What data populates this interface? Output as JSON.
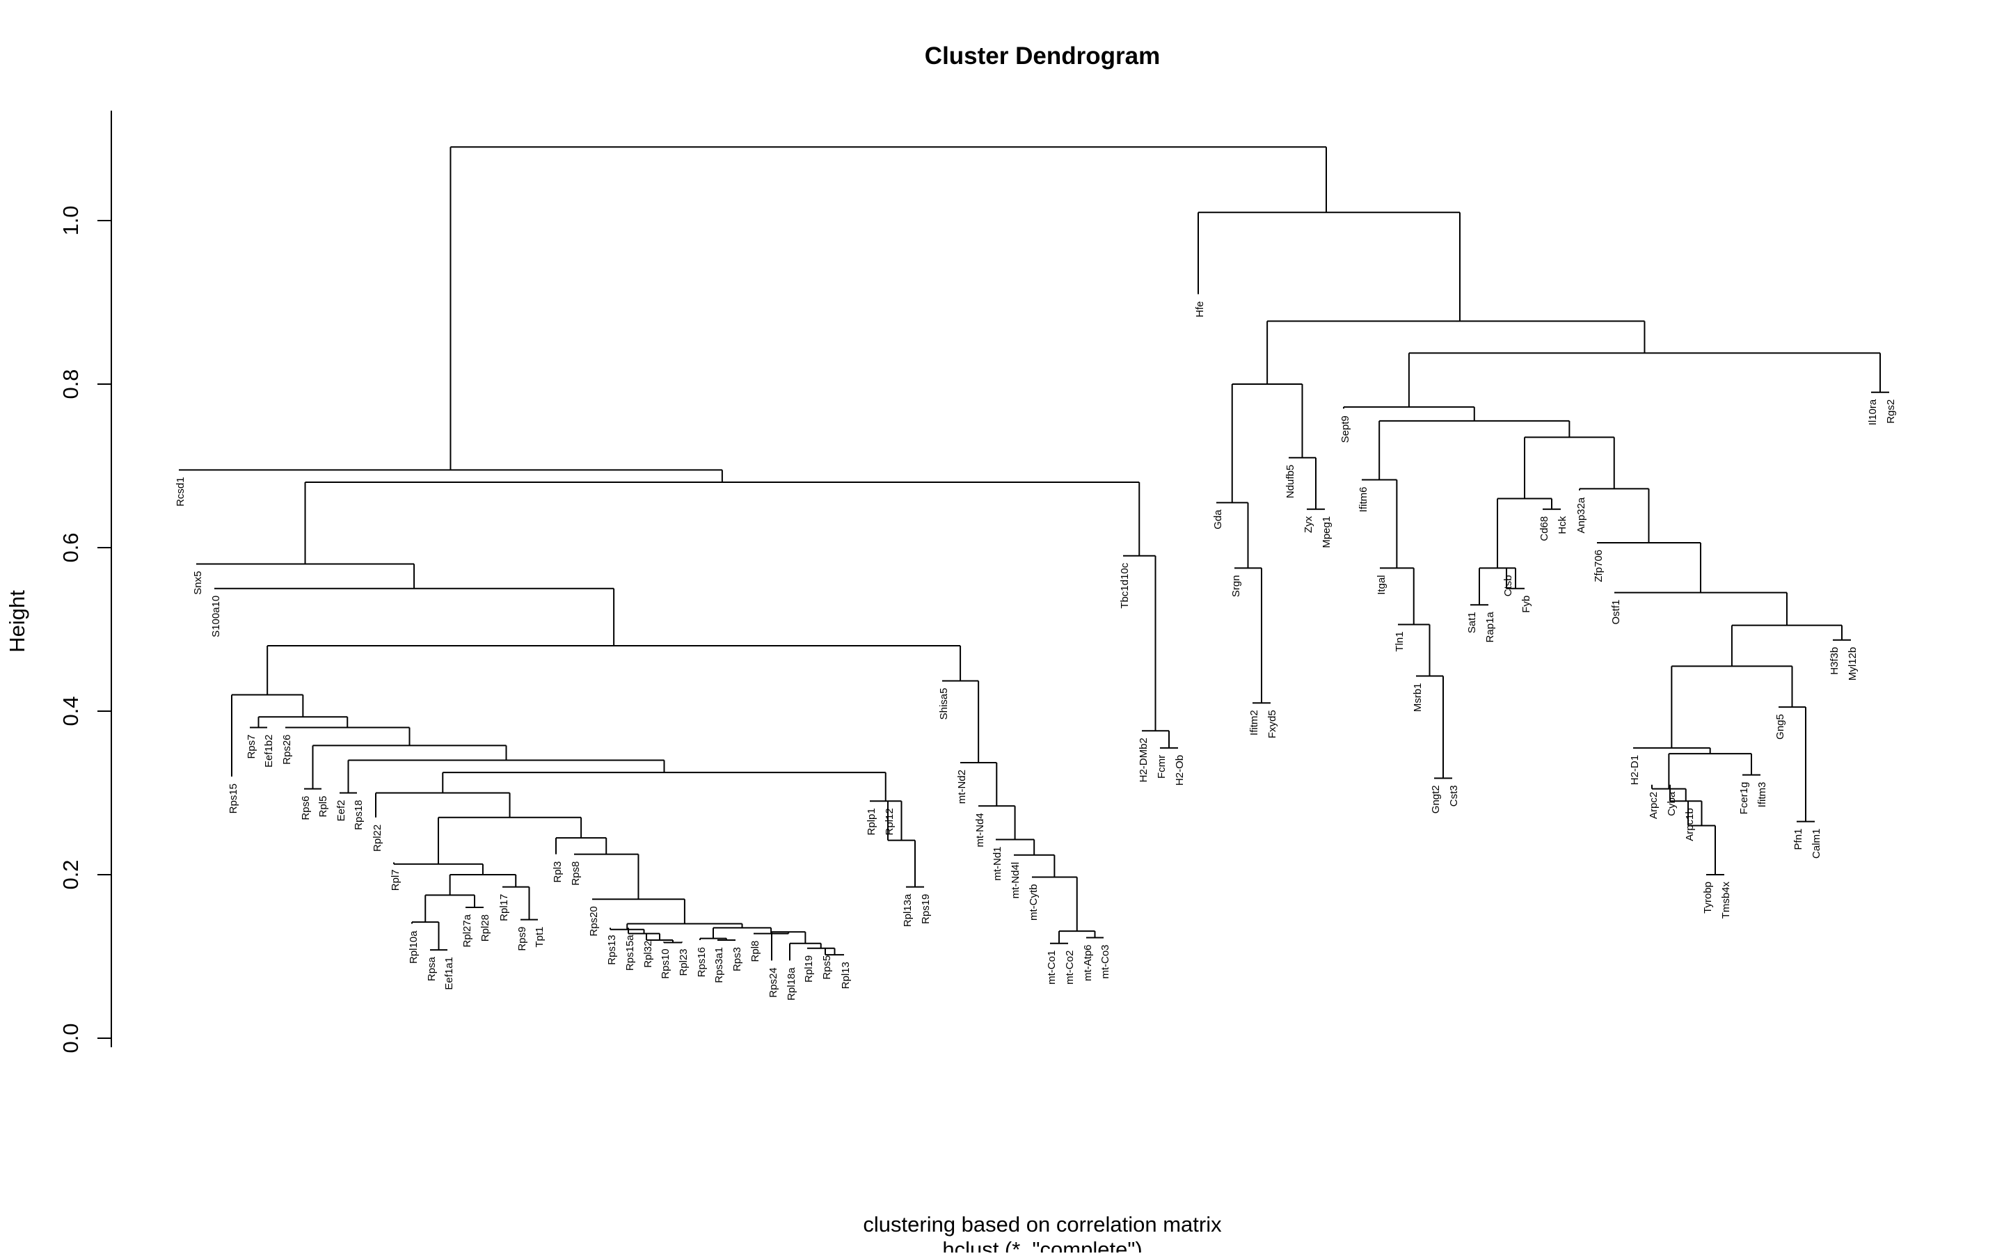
{
  "title": "Cluster Dendrogram",
  "ylabel": "Height",
  "xlabel": "clustering based on correlation matrix",
  "sub": "hclust (*, \"complete\")",
  "ticks": [
    "0.0",
    "0.2",
    "0.4",
    "0.6",
    "0.8",
    "1.0"
  ],
  "colors": {
    "line": "#000000",
    "text": "#000000",
    "background": "#ffffff"
  },
  "chart_data": {
    "type": "dendrogram",
    "ylim": [
      0,
      1.1
    ],
    "ytick_values": [
      0,
      0.2,
      0.4,
      0.6,
      0.8,
      1.0
    ],
    "leaves": [
      "Rcsd1",
      "Snx5",
      "S100a10",
      "Rps15",
      "Rps7",
      "Eef1b2",
      "Rps26",
      "Rps6",
      "Rpl5",
      "Eef2",
      "Rps18",
      "Rpl22",
      "Rpl7",
      "Rpl10a",
      "Rpsa",
      "Eef1a1",
      "Rpl27a",
      "Rpl28",
      "Rpl17",
      "Rps9",
      "Tpt1",
      "Rpl3",
      "Rps8",
      "Rps20",
      "Rps13",
      "Rps15a",
      "Rpl32",
      "Rps10",
      "Rpl23",
      "Rps16",
      "Rps3a1",
      "Rps3",
      "Rpl8",
      "Rps24",
      "Rpl18a",
      "Rpl19",
      "Rps5",
      "Rpl13",
      "Rplp1",
      "Rpl12",
      "Rpl13a",
      "Rps19",
      "Shisa5",
      "mt-Nd2",
      "mt-Nd4",
      "mt-Nd1",
      "mt-Nd4l",
      "mt-Cytb",
      "mt-Co1",
      "mt-Co2",
      "mt-Atp6",
      "mt-Co3",
      "Tbc1d10c",
      "H2-DMb2",
      "Fcmr",
      "H2-Ob",
      "Hfe",
      "Gda",
      "Srgn",
      "Ifitm2",
      "Fxyd5",
      "Ndufb5",
      "Zyx",
      "Mpeg1",
      "Sept9",
      "Ifitm6",
      "Itgal",
      "Tln1",
      "Msrb1",
      "Gngt2",
      "Cst3",
      "Sat1",
      "Rap1a",
      "Ctsb",
      "Fyb",
      "Cd68",
      "Hck",
      "Anp32a",
      "Zfp706",
      "Ostf1",
      "H2-D1",
      "Arpc2",
      "Cyba",
      "Arpc1b",
      "Tyrobp",
      "Tmsb4x",
      "Fcer1g",
      "Ifitm3",
      "Gng5",
      "Pfn1",
      "Calm1",
      "H3f3b",
      "Myl12b",
      "Il10ra",
      "Rgs2"
    ],
    "merges": [
      {
        "children": [
          "Gngt2",
          "Cst3"
        ],
        "height": 0.318
      },
      {
        "children": [
          "Pfn1",
          "Calm1"
        ],
        "height": 0.265
      },
      {
        "children": [
          "Tyrobp",
          "Tmsb4x"
        ],
        "height": 0.2
      },
      {
        "children": [
          "Rpl13a",
          "Rps19"
        ],
        "height": 0.185
      },
      {
        "children": [
          "H2-Ob",
          "Fcmr"
        ],
        "height": 0.355
      },
      {
        "children": [
          "Rpl10a",
          {
            "children": [
              "Rpsa",
              "Eef1a1"
            ],
            "height": 0.107
          }
        ],
        "height": 0.142
      },
      {
        "children": [
          "Rpl27a",
          "Rpl28"
        ],
        "height": 0.16
      },
      {
        "children": [
          "Rps9",
          "Tpt1"
        ],
        "height": 0.145
      },
      {
        "children": [
          "Rps10",
          "Rpl23"
        ],
        "height": 0.117
      },
      {
        "children": [
          "Rps3a1",
          "Rps3"
        ],
        "height": 0.119
      },
      {
        "children": [
          "Rps5",
          "Rpl13"
        ],
        "height": 0.102
      },
      {
        "children": [
          "Rpl19",
          {
            "children": [
              "Rps5",
              "Rpl13"
            ],
            "height": 0.102
          }
        ],
        "height": 0.11
      },
      {
        "children": [
          "Rpl18a",
          "Rpl19 cluster"
        ],
        "height": 0.116
      },
      {
        "children": [
          "Rps24",
          "Rpl18a cluster"
        ],
        "height": 0.13
      },
      {
        "children": [
          "mt-Co1",
          "mt-Co2"
        ],
        "height": 0.116
      },
      {
        "children": [
          "mt-Atp6",
          "mt-Co3"
        ],
        "height": 0.123
      },
      {
        "children": [
          "mt-Co cluster",
          "mt-Atp6 cluster"
        ],
        "height": 0.131
      },
      {
        "children": [
          "mt-Cytb",
          "mt-Co cluster"
        ],
        "height": 0.197
      },
      {
        "children": [
          "mt-Nd4l",
          "mt-Cytb cluster"
        ],
        "height": 0.224
      },
      {
        "children": [
          "mt-Nd1",
          "mt-Nd4l cluster"
        ],
        "height": 0.243
      },
      {
        "children": [
          "mt-Nd4",
          "mt-Nd1 cluster"
        ],
        "height": 0.284
      },
      {
        "children": [
          "mt-Nd2",
          "mt-Nd4 cluster"
        ],
        "height": 0.337
      },
      {
        "children": [
          "Shisa5",
          "mt-Nd2 cluster"
        ],
        "height": 0.437
      },
      {
        "children": [
          "Il10ra",
          "Rgs2"
        ],
        "height": 0.79
      },
      {
        "children": [
          "Hfe",
          "rest of cluster 2"
        ],
        "height": 1.01
      },
      {
        "children": [
          "cluster 1",
          "cluster 2"
        ],
        "height": 1.09
      }
    ]
  }
}
